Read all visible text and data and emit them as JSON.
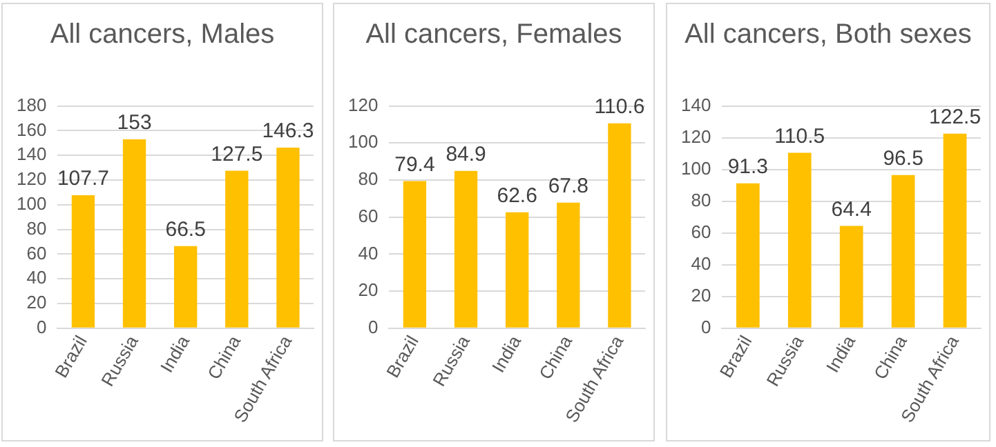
{
  "chart_data": [
    {
      "type": "bar",
      "title": "All cancers, Males",
      "categories": [
        "Brazil",
        "Russia",
        "India",
        "China",
        "South Africa"
      ],
      "values": [
        107.7,
        153,
        66.5,
        127.5,
        146.3
      ],
      "color": "#ffc000",
      "ylim": [
        0,
        180
      ],
      "yticks": [
        0,
        20,
        40,
        60,
        80,
        100,
        120,
        140,
        160,
        180
      ],
      "grid": "y",
      "data_labels": true,
      "legend": false
    },
    {
      "type": "bar",
      "title": "All cancers, Females",
      "categories": [
        "Brazil",
        "Russia",
        "India",
        "China",
        "South Africa"
      ],
      "values": [
        79.4,
        84.9,
        62.6,
        67.8,
        110.6
      ],
      "color": "#ffc000",
      "ylim": [
        0,
        120
      ],
      "yticks": [
        0,
        20,
        40,
        60,
        80,
        100,
        120
      ],
      "grid": "y",
      "data_labels": true,
      "legend": false
    },
    {
      "type": "bar",
      "title": "All cancers, Both sexes",
      "categories": [
        "Brazil",
        "Russia",
        "India",
        "China",
        "South Africa"
      ],
      "values": [
        91.3,
        110.5,
        64.4,
        96.5,
        122.5
      ],
      "color": "#ffc000",
      "ylim": [
        0,
        140
      ],
      "yticks": [
        0,
        20,
        40,
        60,
        80,
        100,
        120,
        140
      ],
      "grid": "y",
      "data_labels": true,
      "legend": false
    }
  ]
}
